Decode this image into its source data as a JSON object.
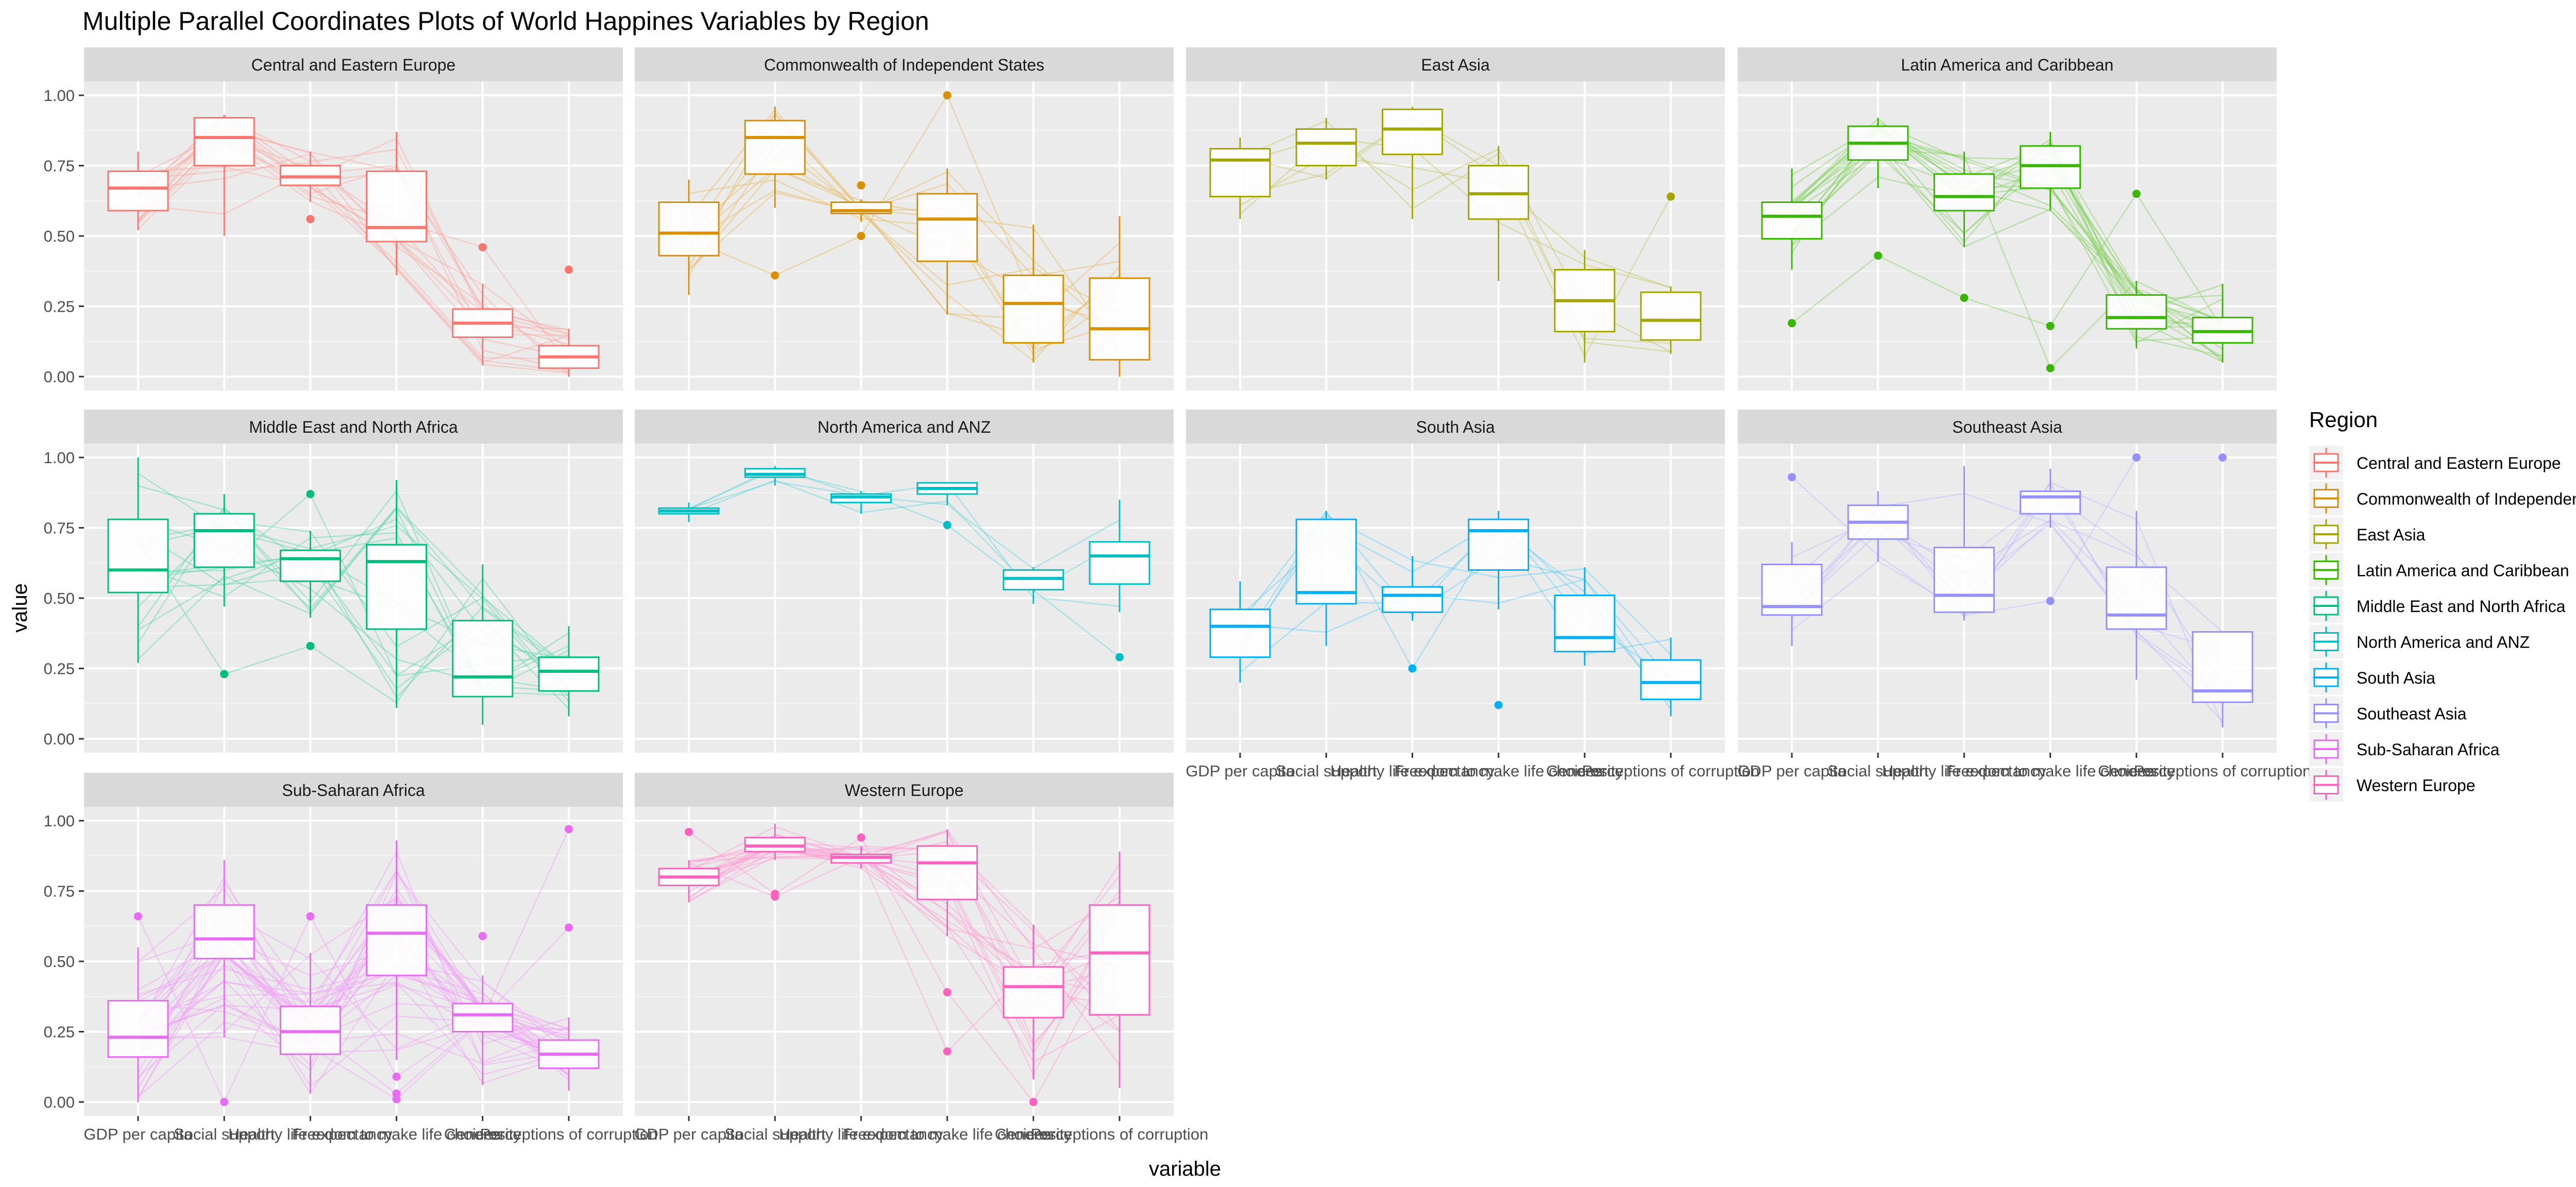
{
  "chart_data": {
    "type": "parallel-coordinates-boxplot",
    "title": "Multiple Parallel Coordinates Plots of World Happines Variables by Region",
    "xlabel": "variable",
    "ylabel": "value",
    "ylim": [
      0,
      1
    ],
    "yticks": [
      0.0,
      0.25,
      0.5,
      0.75,
      1.0
    ],
    "ytick_labels": [
      "0.00",
      "0.25",
      "0.50",
      "0.75",
      "1.00"
    ],
    "variables": [
      "GDP per capita",
      "Social support",
      "Healthy life expectancy",
      "Freedom to make life choices",
      "Generosity",
      "Perceptions of corruption"
    ],
    "grid": true,
    "legend": {
      "title": "Region",
      "placement": "right",
      "entries": [
        {
          "name": "Central and Eastern Europe",
          "color": "#F8766D"
        },
        {
          "name": "Commonwealth of Independent States",
          "color": "#D89000"
        },
        {
          "name": "East Asia",
          "color": "#A3A500"
        },
        {
          "name": "Latin America and Caribbean",
          "color": "#39B600"
        },
        {
          "name": "Middle East and North Africa",
          "color": "#00BF7D"
        },
        {
          "name": "North America and ANZ",
          "color": "#00BFC4"
        },
        {
          "name": "South Asia",
          "color": "#00B0F6"
        },
        {
          "name": "Southeast Asia",
          "color": "#9590FF"
        },
        {
          "name": "Sub-Saharan Africa",
          "color": "#E76BF3"
        },
        {
          "name": "Western Europe",
          "color": "#FF62BC"
        }
      ]
    },
    "panels": [
      {
        "region": "Central and Eastern Europe",
        "color": "#F8766D",
        "n_lines": 17,
        "boxes": [
          {
            "q1": 0.59,
            "median": 0.67,
            "q3": 0.73,
            "lo": 0.52,
            "hi": 0.8,
            "outliers": []
          },
          {
            "q1": 0.75,
            "median": 0.85,
            "q3": 0.92,
            "lo": 0.5,
            "hi": 0.93,
            "outliers": []
          },
          {
            "q1": 0.68,
            "median": 0.71,
            "q3": 0.75,
            "lo": 0.62,
            "hi": 0.8,
            "outliers": [
              0.56
            ]
          },
          {
            "q1": 0.48,
            "median": 0.53,
            "q3": 0.73,
            "lo": 0.36,
            "hi": 0.87,
            "outliers": []
          },
          {
            "q1": 0.14,
            "median": 0.19,
            "q3": 0.24,
            "lo": 0.04,
            "hi": 0.33,
            "outliers": [
              0.46
            ]
          },
          {
            "q1": 0.03,
            "median": 0.07,
            "q3": 0.11,
            "lo": 0.0,
            "hi": 0.17,
            "outliers": [
              0.38
            ]
          }
        ]
      },
      {
        "region": "Commonwealth of Independent States",
        "color": "#D89000",
        "n_lines": 12,
        "boxes": [
          {
            "q1": 0.43,
            "median": 0.51,
            "q3": 0.62,
            "lo": 0.29,
            "hi": 0.7,
            "outliers": []
          },
          {
            "q1": 0.72,
            "median": 0.85,
            "q3": 0.91,
            "lo": 0.6,
            "hi": 0.96,
            "outliers": [
              0.36
            ]
          },
          {
            "q1": 0.58,
            "median": 0.59,
            "q3": 0.62,
            "lo": 0.55,
            "hi": 0.63,
            "outliers": [
              0.5,
              0.68
            ]
          },
          {
            "q1": 0.41,
            "median": 0.56,
            "q3": 0.65,
            "lo": 0.22,
            "hi": 0.74,
            "outliers": [
              1.0
            ]
          },
          {
            "q1": 0.12,
            "median": 0.26,
            "q3": 0.36,
            "lo": 0.05,
            "hi": 0.54,
            "outliers": []
          },
          {
            "q1": 0.06,
            "median": 0.17,
            "q3": 0.35,
            "lo": 0.0,
            "hi": 0.57,
            "outliers": []
          }
        ]
      },
      {
        "region": "East Asia",
        "color": "#A3A500",
        "n_lines": 6,
        "boxes": [
          {
            "q1": 0.64,
            "median": 0.77,
            "q3": 0.81,
            "lo": 0.56,
            "hi": 0.85,
            "outliers": []
          },
          {
            "q1": 0.75,
            "median": 0.83,
            "q3": 0.88,
            "lo": 0.7,
            "hi": 0.92,
            "outliers": []
          },
          {
            "q1": 0.79,
            "median": 0.88,
            "q3": 0.95,
            "lo": 0.56,
            "hi": 0.96,
            "outliers": []
          },
          {
            "q1": 0.56,
            "median": 0.65,
            "q3": 0.75,
            "lo": 0.34,
            "hi": 0.82,
            "outliers": []
          },
          {
            "q1": 0.16,
            "median": 0.27,
            "q3": 0.38,
            "lo": 0.05,
            "hi": 0.45,
            "outliers": []
          },
          {
            "q1": 0.13,
            "median": 0.2,
            "q3": 0.3,
            "lo": 0.08,
            "hi": 0.32,
            "outliers": [
              0.64
            ]
          }
        ]
      },
      {
        "region": "Latin America and Caribbean",
        "color": "#39B600",
        "n_lines": 20,
        "boxes": [
          {
            "q1": 0.49,
            "median": 0.57,
            "q3": 0.62,
            "lo": 0.38,
            "hi": 0.74,
            "outliers": [
              0.19
            ]
          },
          {
            "q1": 0.77,
            "median": 0.83,
            "q3": 0.89,
            "lo": 0.67,
            "hi": 0.92,
            "outliers": [
              0.43
            ]
          },
          {
            "q1": 0.59,
            "median": 0.64,
            "q3": 0.72,
            "lo": 0.46,
            "hi": 0.8,
            "outliers": [
              0.28
            ]
          },
          {
            "q1": 0.67,
            "median": 0.75,
            "q3": 0.82,
            "lo": 0.59,
            "hi": 0.87,
            "outliers": [
              0.18,
              0.03
            ]
          },
          {
            "q1": 0.17,
            "median": 0.21,
            "q3": 0.29,
            "lo": 0.1,
            "hi": 0.34,
            "outliers": [
              0.65
            ]
          },
          {
            "q1": 0.12,
            "median": 0.16,
            "q3": 0.21,
            "lo": 0.05,
            "hi": 0.33,
            "outliers": []
          }
        ]
      },
      {
        "region": "Middle East and North Africa",
        "color": "#00BF7D",
        "n_lines": 17,
        "boxes": [
          {
            "q1": 0.52,
            "median": 0.6,
            "q3": 0.78,
            "lo": 0.27,
            "hi": 1.0,
            "outliers": []
          },
          {
            "q1": 0.61,
            "median": 0.74,
            "q3": 0.8,
            "lo": 0.47,
            "hi": 0.87,
            "outliers": [
              0.23
            ]
          },
          {
            "q1": 0.56,
            "median": 0.64,
            "q3": 0.67,
            "lo": 0.43,
            "hi": 0.74,
            "outliers": [
              0.33,
              0.87
            ]
          },
          {
            "q1": 0.39,
            "median": 0.63,
            "q3": 0.69,
            "lo": 0.11,
            "hi": 0.92,
            "outliers": []
          },
          {
            "q1": 0.15,
            "median": 0.22,
            "q3": 0.42,
            "lo": 0.05,
            "hi": 0.62,
            "outliers": []
          },
          {
            "q1": 0.17,
            "median": 0.24,
            "q3": 0.29,
            "lo": 0.08,
            "hi": 0.4,
            "outliers": []
          }
        ]
      },
      {
        "region": "North America and ANZ",
        "color": "#00BFC4",
        "n_lines": 4,
        "boxes": [
          {
            "q1": 0.8,
            "median": 0.81,
            "q3": 0.82,
            "lo": 0.77,
            "hi": 0.84,
            "outliers": []
          },
          {
            "q1": 0.93,
            "median": 0.94,
            "q3": 0.96,
            "lo": 0.9,
            "hi": 0.97,
            "outliers": []
          },
          {
            "q1": 0.84,
            "median": 0.86,
            "q3": 0.87,
            "lo": 0.8,
            "hi": 0.88,
            "outliers": []
          },
          {
            "q1": 0.87,
            "median": 0.89,
            "q3": 0.91,
            "lo": 0.83,
            "hi": 0.91,
            "outliers": [
              0.76
            ]
          },
          {
            "q1": 0.53,
            "median": 0.57,
            "q3": 0.6,
            "lo": 0.48,
            "hi": 0.61,
            "outliers": []
          },
          {
            "q1": 0.55,
            "median": 0.65,
            "q3": 0.7,
            "lo": 0.45,
            "hi": 0.85,
            "outliers": [
              0.29
            ]
          }
        ]
      },
      {
        "region": "South Asia",
        "color": "#00B0F6",
        "n_lines": 7,
        "boxes": [
          {
            "q1": 0.29,
            "median": 0.4,
            "q3": 0.46,
            "lo": 0.2,
            "hi": 0.56,
            "outliers": []
          },
          {
            "q1": 0.48,
            "median": 0.52,
            "q3": 0.78,
            "lo": 0.33,
            "hi": 0.81,
            "outliers": []
          },
          {
            "q1": 0.45,
            "median": 0.51,
            "q3": 0.54,
            "lo": 0.42,
            "hi": 0.65,
            "outliers": [
              0.25
            ]
          },
          {
            "q1": 0.6,
            "median": 0.74,
            "q3": 0.78,
            "lo": 0.46,
            "hi": 0.81,
            "outliers": [
              0.12
            ]
          },
          {
            "q1": 0.31,
            "median": 0.36,
            "q3": 0.51,
            "lo": 0.26,
            "hi": 0.61,
            "outliers": []
          },
          {
            "q1": 0.14,
            "median": 0.2,
            "q3": 0.28,
            "lo": 0.08,
            "hi": 0.36,
            "outliers": []
          }
        ]
      },
      {
        "region": "Southeast Asia",
        "color": "#9590FF",
        "n_lines": 9,
        "boxes": [
          {
            "q1": 0.44,
            "median": 0.47,
            "q3": 0.62,
            "lo": 0.33,
            "hi": 0.7,
            "outliers": [
              0.93
            ]
          },
          {
            "q1": 0.71,
            "median": 0.77,
            "q3": 0.83,
            "lo": 0.63,
            "hi": 0.88,
            "outliers": []
          },
          {
            "q1": 0.45,
            "median": 0.51,
            "q3": 0.68,
            "lo": 0.42,
            "hi": 0.97,
            "outliers": []
          },
          {
            "q1": 0.8,
            "median": 0.86,
            "q3": 0.88,
            "lo": 0.75,
            "hi": 0.96,
            "outliers": [
              0.49
            ]
          },
          {
            "q1": 0.39,
            "median": 0.44,
            "q3": 0.61,
            "lo": 0.21,
            "hi": 0.81,
            "outliers": [
              1.0
            ]
          },
          {
            "q1": 0.13,
            "median": 0.17,
            "q3": 0.38,
            "lo": 0.04,
            "hi": 0.38,
            "outliers": [
              1.0
            ]
          }
        ]
      },
      {
        "region": "Sub-Saharan Africa",
        "color": "#E76BF3",
        "n_lines": 36,
        "boxes": [
          {
            "q1": 0.16,
            "median": 0.23,
            "q3": 0.36,
            "lo": 0.0,
            "hi": 0.55,
            "outliers": [
              0.66
            ]
          },
          {
            "q1": 0.51,
            "median": 0.58,
            "q3": 0.7,
            "lo": 0.23,
            "hi": 0.86,
            "outliers": [
              0.0
            ]
          },
          {
            "q1": 0.17,
            "median": 0.25,
            "q3": 0.34,
            "lo": 0.03,
            "hi": 0.53,
            "outliers": [
              0.66
            ]
          },
          {
            "q1": 0.45,
            "median": 0.6,
            "q3": 0.7,
            "lo": 0.15,
            "hi": 0.93,
            "outliers": [
              0.09,
              0.03,
              0.01
            ]
          },
          {
            "q1": 0.25,
            "median": 0.31,
            "q3": 0.35,
            "lo": 0.06,
            "hi": 0.45,
            "outliers": [
              0.59
            ]
          },
          {
            "q1": 0.12,
            "median": 0.17,
            "q3": 0.22,
            "lo": 0.04,
            "hi": 0.3,
            "outliers": [
              0.62,
              0.97
            ]
          }
        ]
      },
      {
        "region": "Western Europe",
        "color": "#FF62BC",
        "n_lines": 21,
        "boxes": [
          {
            "q1": 0.77,
            "median": 0.8,
            "q3": 0.83,
            "lo": 0.71,
            "hi": 0.86,
            "outliers": [
              0.96
            ]
          },
          {
            "q1": 0.89,
            "median": 0.91,
            "q3": 0.94,
            "lo": 0.86,
            "hi": 0.99,
            "outliers": [
              0.74,
              0.73
            ]
          },
          {
            "q1": 0.85,
            "median": 0.87,
            "q3": 0.88,
            "lo": 0.83,
            "hi": 0.91,
            "outliers": [
              0.94
            ]
          },
          {
            "q1": 0.72,
            "median": 0.85,
            "q3": 0.91,
            "lo": 0.59,
            "hi": 0.97,
            "outliers": [
              0.39,
              0.18
            ]
          },
          {
            "q1": 0.3,
            "median": 0.41,
            "q3": 0.48,
            "lo": 0.08,
            "hi": 0.63,
            "outliers": [
              0.0
            ]
          },
          {
            "q1": 0.31,
            "median": 0.53,
            "q3": 0.7,
            "lo": 0.05,
            "hi": 0.89,
            "outliers": []
          }
        ]
      }
    ]
  }
}
